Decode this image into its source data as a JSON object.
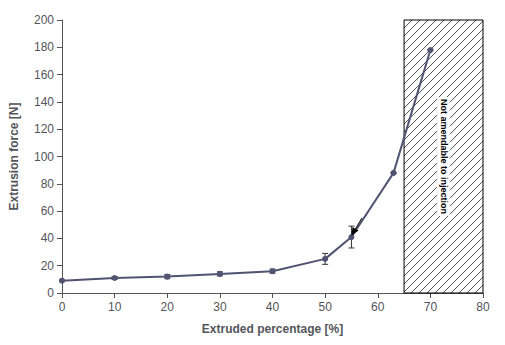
{
  "chart_data": {
    "type": "line",
    "xlabel": "Extruded percentage [%]",
    "ylabel": "Extrusion force [N]",
    "x": [
      0,
      10,
      20,
      30,
      40,
      50,
      55,
      63,
      70
    ],
    "values": [
      9,
      11,
      12,
      14,
      16,
      25,
      41,
      88,
      178
    ],
    "yerr": [
      0.5,
      1.0,
      1.5,
      1.5,
      1.5,
      4.0,
      8.0,
      0.0,
      0.0
    ],
    "marker": "circle",
    "xlim": [
      0,
      80
    ],
    "ylim": [
      0,
      200
    ],
    "xticks": [
      0,
      10,
      20,
      30,
      40,
      50,
      60,
      70,
      80
    ],
    "yticks": [
      0,
      20,
      40,
      60,
      80,
      100,
      120,
      140,
      160,
      180,
      200
    ],
    "grid": false,
    "annotations": [
      {
        "type": "region",
        "x": [
          65,
          80
        ],
        "text": "Not amendable to injection"
      },
      {
        "type": "arrow",
        "from": [
          57,
          55
        ],
        "to": [
          55,
          42
        ]
      }
    ]
  }
}
